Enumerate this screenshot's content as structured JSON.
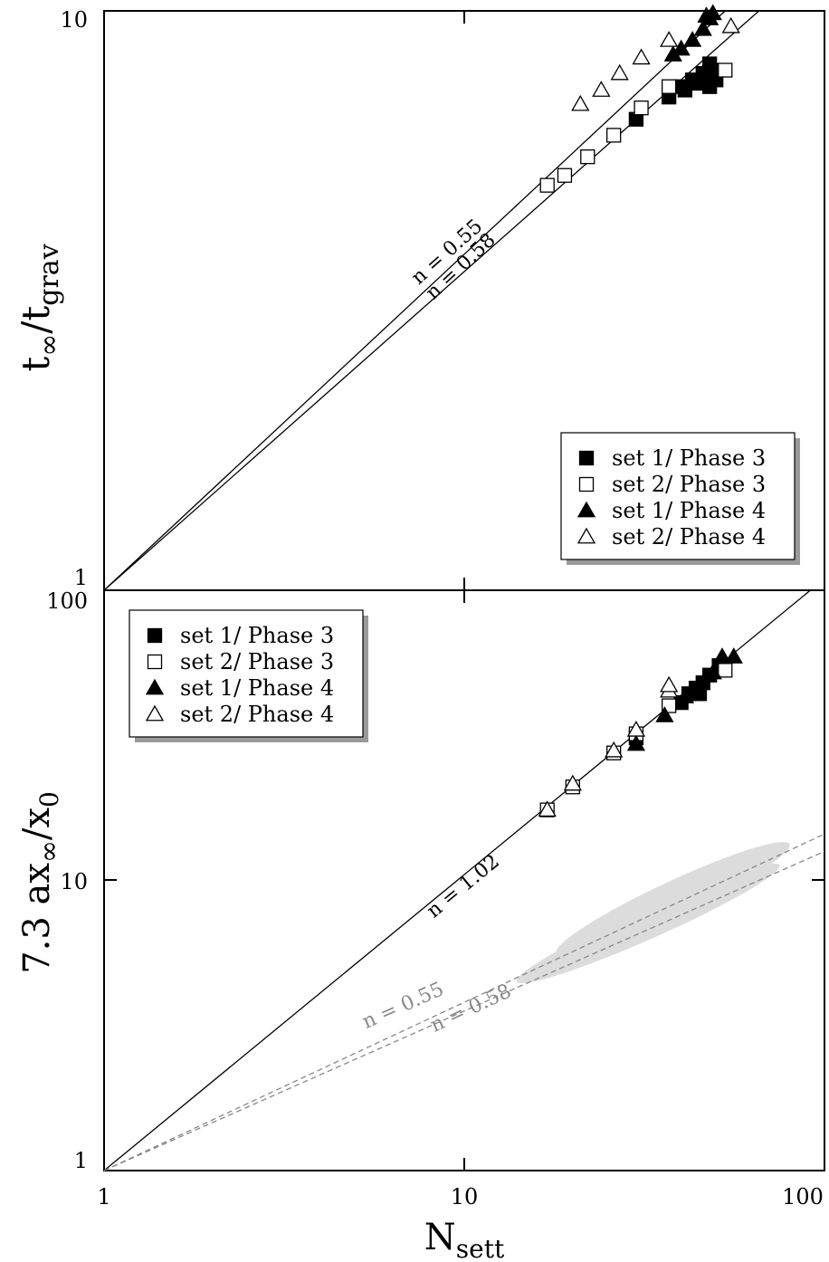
{
  "chart_data": [
    {
      "type": "scatter",
      "panel": "top",
      "ylabel_main": "t",
      "ylabel_sub1": "∞",
      "ylabel_mid": "/t",
      "ylabel_sub2": "grav",
      "xscale": "log",
      "yscale": "log",
      "xlim": [
        1,
        100
      ],
      "ylim": [
        1,
        10
      ],
      "y_ticks": [
        "1",
        "10"
      ],
      "fit_lines": [
        {
          "label": "n = 0.58",
          "exponent": 0.58,
          "style": "solid"
        },
        {
          "label": "n = 0.55",
          "exponent": 0.55,
          "style": "solid"
        }
      ],
      "legend_position": "lower-right",
      "series": [
        {
          "name": "set 1/ Phase 3",
          "marker": "filled-square",
          "points": [
            [
              30,
              6.5
            ],
            [
              37,
              7.1
            ],
            [
              40,
              7.4
            ],
            [
              41,
              7.3
            ],
            [
              43,
              7.6
            ],
            [
              44,
              7.5
            ],
            [
              46,
              7.8
            ],
            [
              47,
              7.7
            ],
            [
              48,
              8.1
            ],
            [
              49,
              7.9
            ],
            [
              50,
              7.6
            ],
            [
              48,
              7.4
            ]
          ]
        },
        {
          "name": "set 2/ Phase 3",
          "marker": "open-square",
          "points": [
            [
              17,
              5.0
            ],
            [
              19,
              5.2
            ],
            [
              22,
              5.6
            ],
            [
              26,
              6.1
            ],
            [
              31,
              6.8
            ],
            [
              37,
              7.4
            ],
            [
              53,
              7.9
            ]
          ]
        },
        {
          "name": "set 1/ Phase 4",
          "marker": "filled-triangle",
          "points": [
            [
              38,
              8.4
            ],
            [
              40,
              8.6
            ],
            [
              43,
              8.9
            ],
            [
              46,
              9.3
            ],
            [
              48,
              9.7
            ],
            [
              49,
              9.9
            ],
            [
              47,
              9.8
            ]
          ]
        },
        {
          "name": "set 2/ Phase 4",
          "marker": "open-triangle",
          "points": [
            [
              21,
              6.9
            ],
            [
              24,
              7.3
            ],
            [
              27,
              7.8
            ],
            [
              31,
              8.3
            ],
            [
              37,
              8.9
            ],
            [
              55,
              9.4
            ]
          ]
        }
      ]
    },
    {
      "type": "scatter",
      "panel": "bottom",
      "ylabel_main": "7.3 ax",
      "ylabel_sub1": "∞",
      "ylabel_mid": "/x",
      "ylabel_sub2": "0",
      "xlabel_main": "N",
      "xlabel_sub": "sett",
      "xscale": "log",
      "yscale": "log",
      "xlim": [
        1,
        100
      ],
      "ylim": [
        1,
        100
      ],
      "x_ticks": [
        "1",
        "10",
        "100"
      ],
      "y_ticks": [
        "1",
        "10",
        "100"
      ],
      "fit_lines": [
        {
          "label": "n = 1.02",
          "exponent": 1.02,
          "style": "solid"
        },
        {
          "label": "n = 0.58",
          "exponent": 0.58,
          "style": "dashed"
        },
        {
          "label": "n = 0.55",
          "exponent": 0.55,
          "style": "dashed"
        }
      ],
      "shaded_regions": 2,
      "legend_position": "top-left",
      "series": [
        {
          "name": "set 1/ Phase 3",
          "marker": "filled-square",
          "points": [
            [
              30,
              31
            ],
            [
              40,
              41
            ],
            [
              42,
              44
            ],
            [
              44,
              46
            ],
            [
              46,
              48
            ],
            [
              48,
              51
            ],
            [
              51,
              55
            ],
            [
              45,
              44
            ]
          ]
        },
        {
          "name": "set 2/ Phase 3",
          "marker": "open-square",
          "points": [
            [
              17,
              17.5
            ],
            [
              20,
              21
            ],
            [
              26,
              27.5
            ],
            [
              30,
              32
            ],
            [
              37,
              40
            ],
            [
              53,
              53
            ]
          ]
        },
        {
          "name": "set 1/ Phase 4",
          "marker": "filled-triangle",
          "points": [
            [
              30,
              29.5
            ],
            [
              36,
              37
            ],
            [
              41,
              43
            ],
            [
              43,
              45
            ],
            [
              49,
              52
            ],
            [
              52,
              59
            ],
            [
              56,
              59
            ]
          ]
        },
        {
          "name": "set 2/ Phase 4",
          "marker": "open-triangle",
          "points": [
            [
              17,
              17.5
            ],
            [
              20,
              21.5
            ],
            [
              26,
              28
            ],
            [
              30,
              33
            ],
            [
              37,
              45
            ],
            [
              37,
              47
            ]
          ]
        }
      ]
    }
  ]
}
